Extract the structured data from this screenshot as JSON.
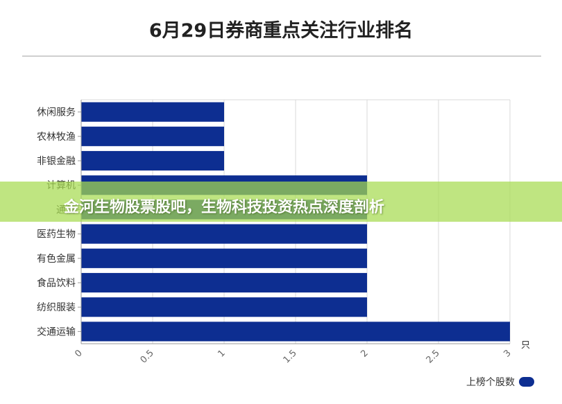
{
  "banner": {
    "text": "金河生物股票股吧，生物科技投资热点深度剖析"
  },
  "colors": {
    "bar": "#0d2e91",
    "grid": "#d9d9d9",
    "banner": "#a6db50"
  },
  "chart_data": {
    "type": "bar",
    "orientation": "horizontal",
    "title": "6月29日券商重点关注行业排名",
    "categories": [
      "休闲服务",
      "农林牧渔",
      "非银金融",
      "计算机",
      "通信",
      "医药生物",
      "有色金属",
      "食品饮料",
      "纺织服装",
      "交通运输"
    ],
    "series": [
      {
        "name": "上榜个股数",
        "values": [
          1,
          1,
          1,
          2,
          2,
          2,
          2,
          2,
          2,
          3
        ]
      }
    ],
    "xlim": [
      0,
      3
    ],
    "xticks": [
      "0",
      "0.5",
      "1",
      "1.5",
      "2",
      "2.5",
      "3"
    ],
    "xunit": "只",
    "grid": true,
    "legend_position": "bottom-right"
  }
}
